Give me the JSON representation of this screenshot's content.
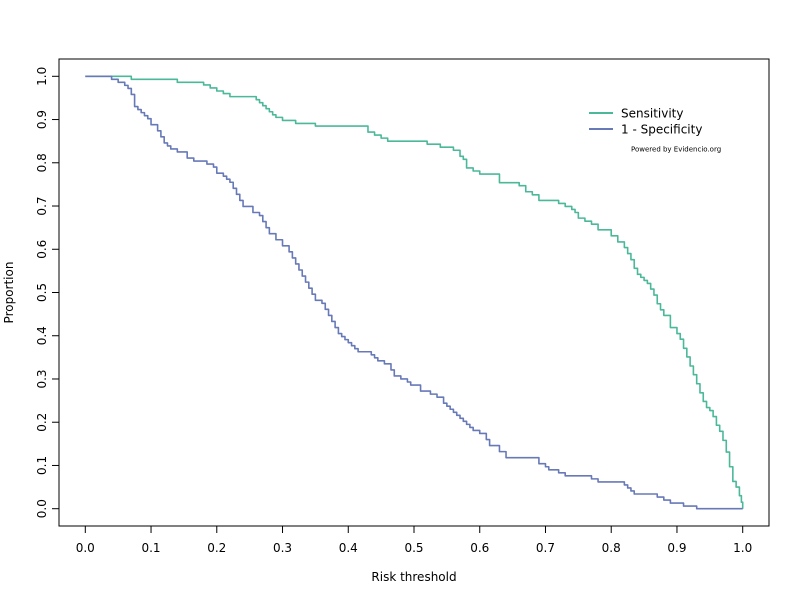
{
  "chart_data": {
    "type": "line",
    "title": "",
    "xlabel": "Risk threshold",
    "ylabel": "Proportion",
    "xlim": [
      -0.04,
      1.04
    ],
    "ylim": [
      -0.04,
      1.04
    ],
    "x_ticks": [
      0.0,
      0.1,
      0.2,
      0.3,
      0.4,
      0.5,
      0.6,
      0.7,
      0.8,
      0.9,
      1.0
    ],
    "x_tick_labels": [
      "0.0",
      "0.1",
      "0.2",
      "0.3",
      "0.4",
      "0.5",
      "0.6",
      "0.7",
      "0.8",
      "0.9",
      "1.0"
    ],
    "y_ticks": [
      0.0,
      0.1,
      0.2,
      0.3,
      0.4,
      0.5,
      0.6,
      0.7,
      0.8,
      0.9,
      1.0
    ],
    "y_tick_labels": [
      "0.0",
      "0.1",
      "0.2",
      "0.3",
      "0.4",
      "0.5",
      "0.6",
      "0.7",
      "0.8",
      "0.9",
      "1.0"
    ],
    "grid": false,
    "legend_position": "top-right",
    "series": [
      {
        "name": "Sensitivity",
        "color": "#4bb89a",
        "x": [
          0.0,
          0.07,
          0.14,
          0.18,
          0.19,
          0.2,
          0.21,
          0.22,
          0.26,
          0.265,
          0.27,
          0.275,
          0.28,
          0.285,
          0.29,
          0.3,
          0.32,
          0.35,
          0.4,
          0.43,
          0.44,
          0.45,
          0.46,
          0.52,
          0.54,
          0.56,
          0.57,
          0.575,
          0.58,
          0.59,
          0.6,
          0.63,
          0.66,
          0.67,
          0.68,
          0.69,
          0.72,
          0.73,
          0.74,
          0.745,
          0.75,
          0.76,
          0.77,
          0.78,
          0.8,
          0.81,
          0.82,
          0.825,
          0.83,
          0.835,
          0.84,
          0.845,
          0.85,
          0.855,
          0.86,
          0.865,
          0.87,
          0.875,
          0.88,
          0.89,
          0.9,
          0.905,
          0.91,
          0.915,
          0.92,
          0.925,
          0.93,
          0.935,
          0.94,
          0.945,
          0.95,
          0.955,
          0.96,
          0.965,
          0.97,
          0.975,
          0.98,
          0.985,
          0.99,
          0.995,
          0.998,
          1.0
        ],
        "y": [
          1.0,
          0.993,
          0.986,
          0.98,
          0.973,
          0.966,
          0.96,
          0.953,
          0.946,
          0.939,
          0.932,
          0.925,
          0.918,
          0.911,
          0.905,
          0.898,
          0.891,
          0.885,
          0.885,
          0.871,
          0.864,
          0.857,
          0.85,
          0.843,
          0.836,
          0.829,
          0.815,
          0.808,
          0.788,
          0.781,
          0.774,
          0.754,
          0.747,
          0.733,
          0.726,
          0.713,
          0.706,
          0.699,
          0.692,
          0.685,
          0.672,
          0.665,
          0.658,
          0.645,
          0.631,
          0.617,
          0.604,
          0.59,
          0.576,
          0.556,
          0.542,
          0.535,
          0.528,
          0.521,
          0.508,
          0.494,
          0.474,
          0.46,
          0.447,
          0.419,
          0.405,
          0.392,
          0.371,
          0.351,
          0.33,
          0.31,
          0.289,
          0.268,
          0.248,
          0.234,
          0.227,
          0.213,
          0.193,
          0.179,
          0.158,
          0.131,
          0.097,
          0.063,
          0.05,
          0.03,
          0.015,
          0.0
        ]
      },
      {
        "name": "1 - Specificity",
        "color": "#6879b8",
        "x": [
          0.0,
          0.04,
          0.05,
          0.06,
          0.065,
          0.07,
          0.075,
          0.08,
          0.085,
          0.09,
          0.095,
          0.1,
          0.11,
          0.115,
          0.12,
          0.125,
          0.13,
          0.14,
          0.155,
          0.165,
          0.185,
          0.195,
          0.2,
          0.21,
          0.215,
          0.22,
          0.225,
          0.23,
          0.235,
          0.24,
          0.255,
          0.265,
          0.27,
          0.275,
          0.28,
          0.29,
          0.3,
          0.31,
          0.315,
          0.32,
          0.325,
          0.33,
          0.335,
          0.34,
          0.345,
          0.35,
          0.36,
          0.365,
          0.37,
          0.375,
          0.38,
          0.385,
          0.39,
          0.395,
          0.4,
          0.405,
          0.41,
          0.415,
          0.435,
          0.44,
          0.445,
          0.455,
          0.465,
          0.47,
          0.48,
          0.49,
          0.495,
          0.51,
          0.525,
          0.535,
          0.545,
          0.55,
          0.555,
          0.56,
          0.565,
          0.57,
          0.575,
          0.58,
          0.585,
          0.59,
          0.6,
          0.61,
          0.615,
          0.63,
          0.64,
          0.69,
          0.7,
          0.705,
          0.72,
          0.73,
          0.77,
          0.78,
          0.82,
          0.825,
          0.83,
          0.835,
          0.87,
          0.88,
          0.89,
          0.91,
          0.93,
          0.96,
          0.975,
          0.985,
          0.993,
          0.998,
          1.0
        ],
        "y": [
          1.0,
          0.993,
          0.986,
          0.979,
          0.972,
          0.958,
          0.93,
          0.923,
          0.916,
          0.909,
          0.902,
          0.888,
          0.874,
          0.86,
          0.846,
          0.839,
          0.832,
          0.825,
          0.811,
          0.804,
          0.797,
          0.79,
          0.776,
          0.769,
          0.762,
          0.755,
          0.741,
          0.727,
          0.713,
          0.699,
          0.685,
          0.678,
          0.664,
          0.65,
          0.636,
          0.622,
          0.608,
          0.594,
          0.58,
          0.566,
          0.552,
          0.538,
          0.524,
          0.51,
          0.496,
          0.482,
          0.475,
          0.461,
          0.447,
          0.433,
          0.419,
          0.405,
          0.398,
          0.391,
          0.384,
          0.377,
          0.37,
          0.363,
          0.356,
          0.349,
          0.342,
          0.335,
          0.321,
          0.307,
          0.3,
          0.293,
          0.286,
          0.272,
          0.265,
          0.258,
          0.244,
          0.237,
          0.23,
          0.223,
          0.216,
          0.209,
          0.202,
          0.195,
          0.188,
          0.181,
          0.174,
          0.16,
          0.146,
          0.132,
          0.118,
          0.104,
          0.097,
          0.09,
          0.083,
          0.076,
          0.069,
          0.062,
          0.055,
          0.048,
          0.041,
          0.034,
          0.027,
          0.02,
          0.013,
          0.006,
          0.0,
          0.0,
          0.0,
          0.0,
          0.0,
          0.0,
          0.0
        ]
      }
    ],
    "annotations": [
      "Powered by Evidencio.org"
    ]
  }
}
